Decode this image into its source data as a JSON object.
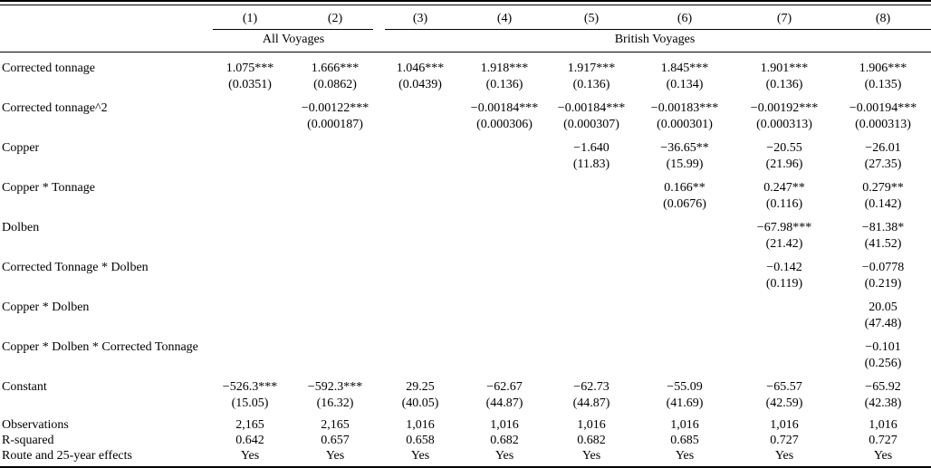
{
  "table": {
    "column_numbers": [
      "(1)",
      "(2)",
      "(3)",
      "(4)",
      "(5)",
      "(6)",
      "(7)",
      "(8)"
    ],
    "groups": [
      {
        "label": "All Voyages",
        "span": 2
      },
      {
        "label": "British Voyages",
        "span": 6
      }
    ],
    "rows": [
      {
        "label": "Corrected tonnage",
        "coefs": [
          "1.075***",
          "1.666***",
          "1.046***",
          "1.918***",
          "1.917***",
          "1.845***",
          "1.901***",
          "1.906***"
        ],
        "ses": [
          "(0.0351)",
          "(0.0862)",
          "(0.0439)",
          "(0.136)",
          "(0.136)",
          "(0.134)",
          "(0.136)",
          "(0.135)"
        ]
      },
      {
        "label": "Corrected tonnage^2",
        "coefs": [
          "",
          "−0.00122***",
          "",
          "−0.00184***",
          "−0.00184***",
          "−0.00183***",
          "−0.00192***",
          "−0.00194***"
        ],
        "ses": [
          "",
          "(0.000187)",
          "",
          "(0.000306)",
          "(0.000307)",
          "(0.000301)",
          "(0.000313)",
          "(0.000313)"
        ]
      },
      {
        "label": "Copper",
        "coefs": [
          "",
          "",
          "",
          "",
          "−1.640",
          "−36.65**",
          "−20.55",
          "−26.01"
        ],
        "ses": [
          "",
          "",
          "",
          "",
          "(11.83)",
          "(15.99)",
          "(21.96)",
          "(27.35)"
        ]
      },
      {
        "label": "Copper * Tonnage",
        "coefs": [
          "",
          "",
          "",
          "",
          "",
          "0.166**",
          "0.247**",
          "0.279**"
        ],
        "ses": [
          "",
          "",
          "",
          "",
          "",
          "(0.0676)",
          "(0.116)",
          "(0.142)"
        ]
      },
      {
        "label": "Dolben",
        "coefs": [
          "",
          "",
          "",
          "",
          "",
          "",
          "−67.98***",
          "−81.38*"
        ],
        "ses": [
          "",
          "",
          "",
          "",
          "",
          "",
          "(21.42)",
          "(41.52)"
        ]
      },
      {
        "label": "Corrected Tonnage * Dolben",
        "coefs": [
          "",
          "",
          "",
          "",
          "",
          "",
          "−0.142",
          "−0.0778"
        ],
        "ses": [
          "",
          "",
          "",
          "",
          "",
          "",
          "(0.119)",
          "(0.219)"
        ]
      },
      {
        "label": "Copper * Dolben",
        "coefs": [
          "",
          "",
          "",
          "",
          "",
          "",
          "",
          "20.05"
        ],
        "ses": [
          "",
          "",
          "",
          "",
          "",
          "",
          "",
          "(47.48)"
        ]
      },
      {
        "label": "Copper * Dolben * Corrected Tonnage",
        "coefs": [
          "",
          "",
          "",
          "",
          "",
          "",
          "",
          "−0.101"
        ],
        "ses": [
          "",
          "",
          "",
          "",
          "",
          "",
          "",
          "(0.256)"
        ]
      },
      {
        "label": "Constant",
        "coefs": [
          "−526.3***",
          "−592.3***",
          "29.25",
          "−62.67",
          "−62.73",
          "−55.09",
          "−65.57",
          "−65.92"
        ],
        "ses": [
          "(15.05)",
          "(16.32)",
          "(40.05)",
          "(44.87)",
          "(44.87)",
          "(41.69)",
          "(42.59)",
          "(42.38)"
        ]
      }
    ],
    "stats": [
      {
        "label": "Observations",
        "values": [
          "2,165",
          "2,165",
          "1,016",
          "1,016",
          "1,016",
          "1,016",
          "1,016",
          "1,016"
        ]
      },
      {
        "label": "R-squared",
        "values": [
          "0.642",
          "0.657",
          "0.658",
          "0.682",
          "0.682",
          "0.685",
          "0.727",
          "0.727"
        ]
      },
      {
        "label": "Route and 25-year effects",
        "values": [
          "Yes",
          "Yes",
          "Yes",
          "Yes",
          "Yes",
          "Yes",
          "Yes",
          "Yes"
        ]
      }
    ]
  }
}
